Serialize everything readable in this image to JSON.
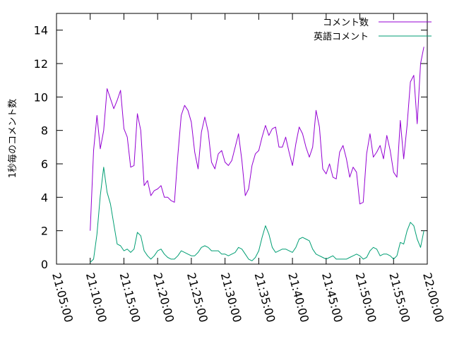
{
  "chart_data": {
    "type": "line",
    "title": "",
    "xlabel": "",
    "ylabel": "1秒毎のコメント数",
    "xlim": [
      "21:05:00",
      "22:00:00"
    ],
    "ylim": [
      0,
      15
    ],
    "yticks": [
      0,
      2,
      4,
      6,
      8,
      10,
      12,
      14
    ],
    "xticks": [
      "21:05:00",
      "21:10:00",
      "21:15:00",
      "21:20:00",
      "21:25:00",
      "21:30:00",
      "21:35:00",
      "21:40:00",
      "21:45:00",
      "21:50:00",
      "21:55:00",
      "22:00:00"
    ],
    "grid": false,
    "legend_position": "top-right",
    "x_step_seconds": 30,
    "x_start": "21:10:00",
    "series": [
      {
        "name": "コメント数",
        "color": "#9400d3",
        "values": [
          2.0,
          6.8,
          8.9,
          6.9,
          8.0,
          10.5,
          9.9,
          9.3,
          9.8,
          10.4,
          8.1,
          7.6,
          5.8,
          5.9,
          9.0,
          8.0,
          4.7,
          5.0,
          4.1,
          4.4,
          4.5,
          4.7,
          4.0,
          4.0,
          3.8,
          3.7,
          6.5,
          8.9,
          9.5,
          9.2,
          8.5,
          6.7,
          5.7,
          7.9,
          8.8,
          7.9,
          6.1,
          5.7,
          6.6,
          6.8,
          6.1,
          5.9,
          6.2,
          7.0,
          7.8,
          6.2,
          4.1,
          4.5,
          5.9,
          6.6,
          6.8,
          7.6,
          8.3,
          7.7,
          8.1,
          8.2,
          7.0,
          7.0,
          7.6,
          6.7,
          5.9,
          7.2,
          8.2,
          7.8,
          7.0,
          6.4,
          7.0,
          9.2,
          8.2,
          5.7,
          5.4,
          6.0,
          5.2,
          5.1,
          6.7,
          7.1,
          6.3,
          5.2,
          5.8,
          5.5,
          3.6,
          3.7,
          6.6,
          7.8,
          6.4,
          6.7,
          7.1,
          6.3,
          7.7,
          6.8,
          5.5,
          5.2,
          8.6,
          6.3,
          8.3,
          10.9,
          11.3,
          8.4,
          12.0,
          13.0
        ]
      },
      {
        "name": "英語コメント",
        "color": "#009e73",
        "values": [
          0.1,
          0.3,
          1.8,
          4.1,
          5.8,
          4.3,
          3.6,
          2.4,
          1.2,
          1.1,
          0.8,
          0.9,
          0.7,
          0.9,
          1.9,
          1.7,
          0.8,
          0.5,
          0.3,
          0.5,
          0.8,
          0.9,
          0.6,
          0.4,
          0.3,
          0.3,
          0.5,
          0.8,
          0.7,
          0.6,
          0.5,
          0.5,
          0.7,
          1.0,
          1.1,
          1.0,
          0.8,
          0.8,
          0.8,
          0.6,
          0.6,
          0.5,
          0.6,
          0.7,
          1.0,
          0.9,
          0.6,
          0.3,
          0.2,
          0.4,
          0.8,
          1.6,
          2.3,
          1.8,
          1.0,
          0.7,
          0.8,
          0.9,
          0.9,
          0.8,
          0.7,
          1.0,
          1.5,
          1.6,
          1.5,
          1.4,
          0.9,
          0.6,
          0.5,
          0.4,
          0.3,
          0.4,
          0.5,
          0.3,
          0.3,
          0.3,
          0.3,
          0.4,
          0.5,
          0.6,
          0.5,
          0.3,
          0.4,
          0.8,
          1.0,
          0.9,
          0.5,
          0.6,
          0.6,
          0.5,
          0.3,
          0.5,
          1.3,
          1.2,
          2.0,
          2.5,
          2.3,
          1.5,
          1.0,
          2.0
        ]
      }
    ]
  }
}
